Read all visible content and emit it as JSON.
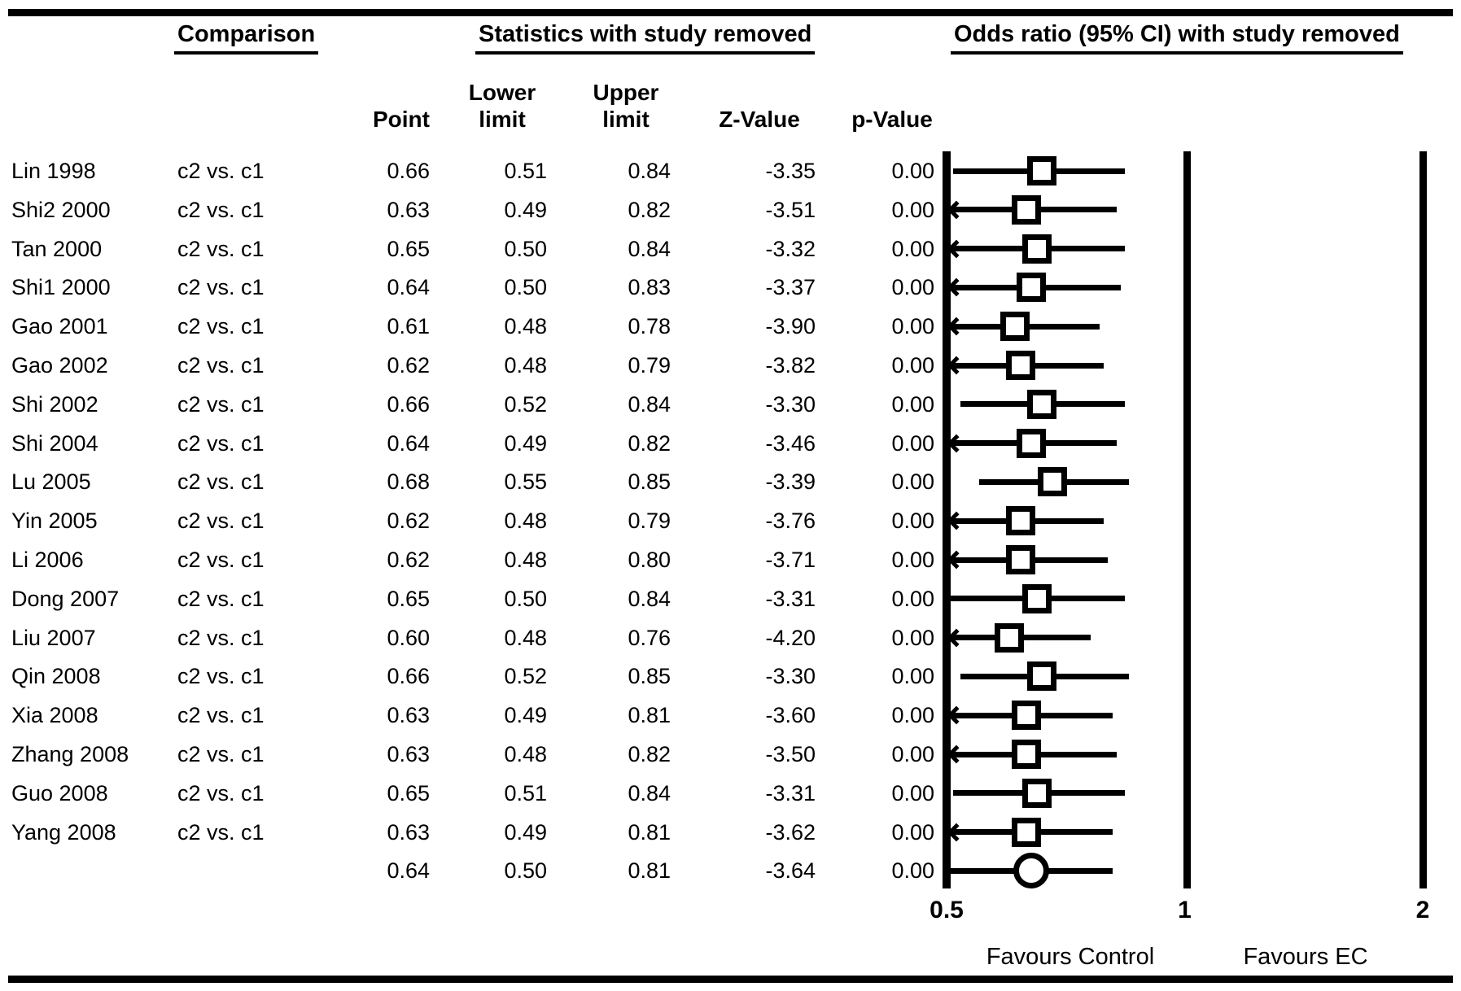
{
  "colors": {
    "ink": "#000000",
    "background": "#ffffff"
  },
  "headers": {
    "comparison": "Comparison",
    "statistics": "Statistics with study removed",
    "odds_ratio": "Odds ratio (95% CI) with study removed"
  },
  "subheaders": {
    "point": "Point",
    "lower_line1": "Lower",
    "lower_line2": "limit",
    "upper_line1": "Upper",
    "upper_line2": "limit",
    "z_value": "Z-Value",
    "p_value": "p-Value"
  },
  "chart_data": {
    "type": "forest",
    "title": "Odds ratio (95% CI) with study removed",
    "x_axis": {
      "scale": "log",
      "min": 0.5,
      "max": 2,
      "ticks": [
        "0.5",
        "1",
        "2"
      ]
    },
    "footer": {
      "left_label": "Favours Control",
      "right_label": "Favours EC"
    },
    "columns": [
      "Point",
      "Lower limit",
      "Upper limit",
      "Z-Value",
      "p-Value"
    ],
    "rows": [
      {
        "study": "Lin 1998",
        "comparison": "c2 vs. c1",
        "point": "0.66",
        "lower": "0.51",
        "upper": "0.84",
        "z": "-3.35",
        "p": "0.00",
        "clipped_left": false
      },
      {
        "study": "Shi2 2000",
        "comparison": "c2 vs. c1",
        "point": "0.63",
        "lower": "0.49",
        "upper": "0.82",
        "z": "-3.51",
        "p": "0.00",
        "clipped_left": true
      },
      {
        "study": "Tan 2000",
        "comparison": "c2 vs. c1",
        "point": "0.65",
        "lower": "0.50",
        "upper": "0.84",
        "z": "-3.32",
        "p": "0.00",
        "clipped_left": true
      },
      {
        "study": "Shi1 2000",
        "comparison": "c2 vs. c1",
        "point": "0.64",
        "lower": "0.50",
        "upper": "0.83",
        "z": "-3.37",
        "p": "0.00",
        "clipped_left": true
      },
      {
        "study": "Gao 2001",
        "comparison": "c2 vs. c1",
        "point": "0.61",
        "lower": "0.48",
        "upper": "0.78",
        "z": "-3.90",
        "p": "0.00",
        "clipped_left": true
      },
      {
        "study": "Gao 2002",
        "comparison": "c2 vs. c1",
        "point": "0.62",
        "lower": "0.48",
        "upper": "0.79",
        "z": "-3.82",
        "p": "0.00",
        "clipped_left": true
      },
      {
        "study": "Shi 2002",
        "comparison": "c2 vs. c1",
        "point": "0.66",
        "lower": "0.52",
        "upper": "0.84",
        "z": "-3.30",
        "p": "0.00",
        "clipped_left": false
      },
      {
        "study": "Shi 2004",
        "comparison": "c2 vs. c1",
        "point": "0.64",
        "lower": "0.49",
        "upper": "0.82",
        "z": "-3.46",
        "p": "0.00",
        "clipped_left": true
      },
      {
        "study": "Lu 2005",
        "comparison": "c2 vs. c1",
        "point": "0.68",
        "lower": "0.55",
        "upper": "0.85",
        "z": "-3.39",
        "p": "0.00",
        "clipped_left": false
      },
      {
        "study": "Yin 2005",
        "comparison": "c2 vs. c1",
        "point": "0.62",
        "lower": "0.48",
        "upper": "0.79",
        "z": "-3.76",
        "p": "0.00",
        "clipped_left": true
      },
      {
        "study": "Li 2006",
        "comparison": "c2 vs. c1",
        "point": "0.62",
        "lower": "0.48",
        "upper": "0.80",
        "z": "-3.71",
        "p": "0.00",
        "clipped_left": true
      },
      {
        "study": "Dong 2007",
        "comparison": "c2 vs. c1",
        "point": "0.65",
        "lower": "0.50",
        "upper": "0.84",
        "z": "-3.31",
        "p": "0.00",
        "clipped_left": false
      },
      {
        "study": "Liu 2007",
        "comparison": "c2 vs. c1",
        "point": "0.60",
        "lower": "0.48",
        "upper": "0.76",
        "z": "-4.20",
        "p": "0.00",
        "clipped_left": true
      },
      {
        "study": "Qin 2008",
        "comparison": "c2 vs. c1",
        "point": "0.66",
        "lower": "0.52",
        "upper": "0.85",
        "z": "-3.30",
        "p": "0.00",
        "clipped_left": false
      },
      {
        "study": "Xia 2008",
        "comparison": "c2 vs. c1",
        "point": "0.63",
        "lower": "0.49",
        "upper": "0.81",
        "z": "-3.60",
        "p": "0.00",
        "clipped_left": true
      },
      {
        "study": "Zhang 2008",
        "comparison": "c2 vs. c1",
        "point": "0.63",
        "lower": "0.48",
        "upper": "0.82",
        "z": "-3.50",
        "p": "0.00",
        "clipped_left": true
      },
      {
        "study": "Guo 2008",
        "comparison": "c2 vs. c1",
        "point": "0.65",
        "lower": "0.51",
        "upper": "0.84",
        "z": "-3.31",
        "p": "0.00",
        "clipped_left": false
      },
      {
        "study": "Yang 2008",
        "comparison": "c2 vs. c1",
        "point": "0.63",
        "lower": "0.49",
        "upper": "0.81",
        "z": "-3.62",
        "p": "0.00",
        "clipped_left": true
      }
    ],
    "summary": {
      "point": "0.64",
      "lower": "0.50",
      "upper": "0.81",
      "z": "-3.64",
      "p": "0.00",
      "clipped_left": false,
      "marker": "circle"
    }
  }
}
